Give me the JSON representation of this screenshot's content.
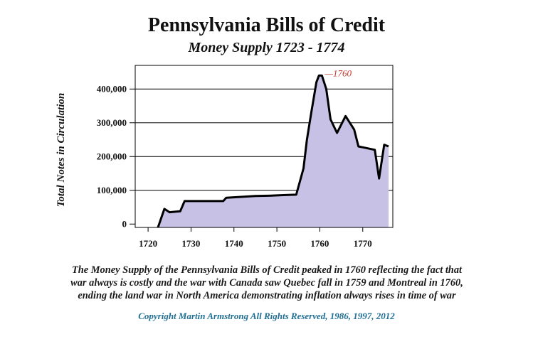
{
  "chart_data": {
    "type": "area",
    "title": "Pennsylvania Bills of Credit",
    "subtitle": "Money Supply 1723 - 1774",
    "xlabel": "",
    "ylabel": "Total Notes in Circulation",
    "xlim": [
      1717,
      1777
    ],
    "ylim": [
      -10000,
      470000
    ],
    "grid": true,
    "fill_color": "#c8c1e6",
    "line_color": "#000000",
    "annotation_color": "#c0392b",
    "x_ticks": [
      1720,
      1730,
      1740,
      1750,
      1760,
      1770
    ],
    "x_tick_labels": [
      "1720",
      "1730",
      "1740",
      "1750",
      "1760",
      "1770"
    ],
    "y_ticks": [
      0,
      100000,
      200000,
      300000,
      400000
    ],
    "y_tick_labels": [
      "0",
      "100,000",
      "200,000",
      "300,000",
      "400,000"
    ],
    "annotation": {
      "x": 1760,
      "y": 440000,
      "text": "—1760"
    },
    "series": [
      {
        "x": [
          1722.3,
          1723.8,
          1725,
          1726.5,
          1727.5,
          1728.5,
          1731,
          1735,
          1737.5,
          1738.2,
          1741,
          1745,
          1748,
          1750,
          1752,
          1754.5,
          1756.2,
          1757,
          1758,
          1759.2,
          1759.8,
          1760.5,
          1761.5,
          1762.5,
          1764,
          1766,
          1768,
          1769,
          1772.8,
          1773.8,
          1775,
          1776
        ],
        "y": [
          -10000,
          45000,
          35000,
          37000,
          38000,
          68000,
          68000,
          68000,
          68000,
          78000,
          80000,
          83000,
          84000,
          85000,
          86000,
          87000,
          165000,
          250000,
          330000,
          420000,
          440000,
          440000,
          400000,
          310000,
          270000,
          320000,
          280000,
          230000,
          220000,
          135000,
          235000,
          230000
        ]
      }
    ]
  },
  "caption": {
    "lines": [
      "The Money Supply of the Pennsylvania Bills of Credit peaked in 1760 reflecting the fact that",
      "war always is costly and the war with Canada saw Quebec fall in 1759 and Montreal in 1760,",
      "ending the land war in North America demonstrating inflation always rises in time of war"
    ]
  },
  "copyright": "Copyright Martin Armstrong All Rights Reserved, 1986, 1997, 2012"
}
